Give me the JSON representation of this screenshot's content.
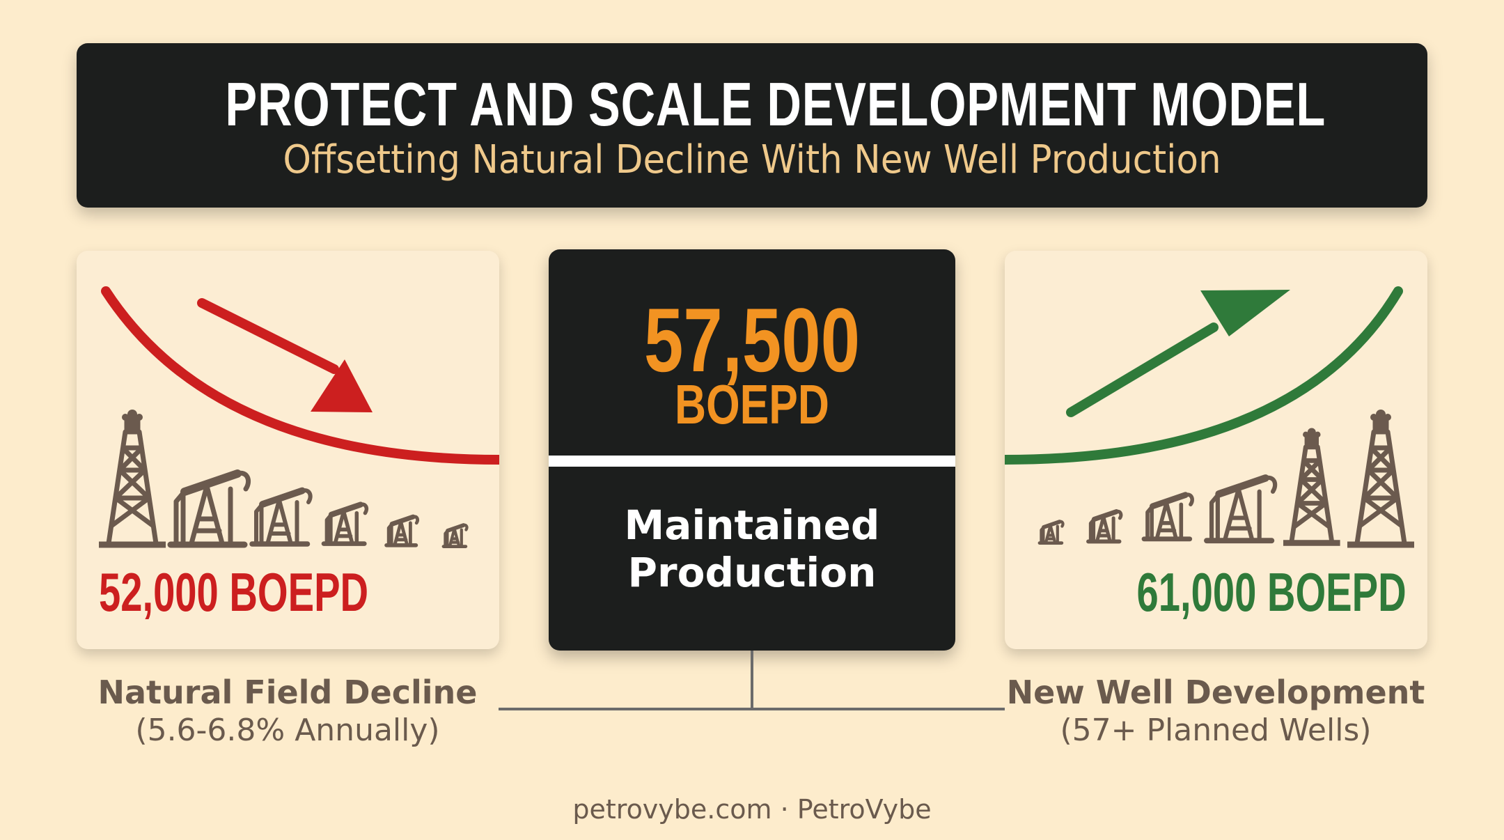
{
  "header": {
    "title": "PROTECT AND SCALE DEVELOPMENT MODEL",
    "subtitle": "Offsetting Natural Decline With New Well Production"
  },
  "left_panel": {
    "value": "52,000 BOEPD",
    "caption_title": "Natural Field Decline",
    "caption_sub": "(5.6-6.8% Annually)",
    "color": "#cc1f1f",
    "icons": [
      "derrick-icon",
      "pumpjack-icon",
      "pumpjack-icon",
      "pumpjack-icon",
      "pumpjack-icon",
      "pumpjack-icon"
    ]
  },
  "center_card": {
    "number": "57,500",
    "unit": "BOEPD",
    "label_line1": "Maintained",
    "label_line2": "Production",
    "number_color": "#f29322"
  },
  "right_panel": {
    "value": "61,000 BOEPD",
    "caption_title": "New Well Development",
    "caption_sub": "(57+ Planned Wells)",
    "color": "#2f7a3a",
    "icons": [
      "pumpjack-icon",
      "pumpjack-icon",
      "pumpjack-icon",
      "pumpjack-icon",
      "derrick-icon",
      "derrick-icon"
    ]
  },
  "footer": {
    "text": "petrovybe.com · PetroVybe"
  },
  "colors": {
    "background": "#fdeccc",
    "dark": "#1c1e1d",
    "icon_brown": "#6b5a4e"
  }
}
